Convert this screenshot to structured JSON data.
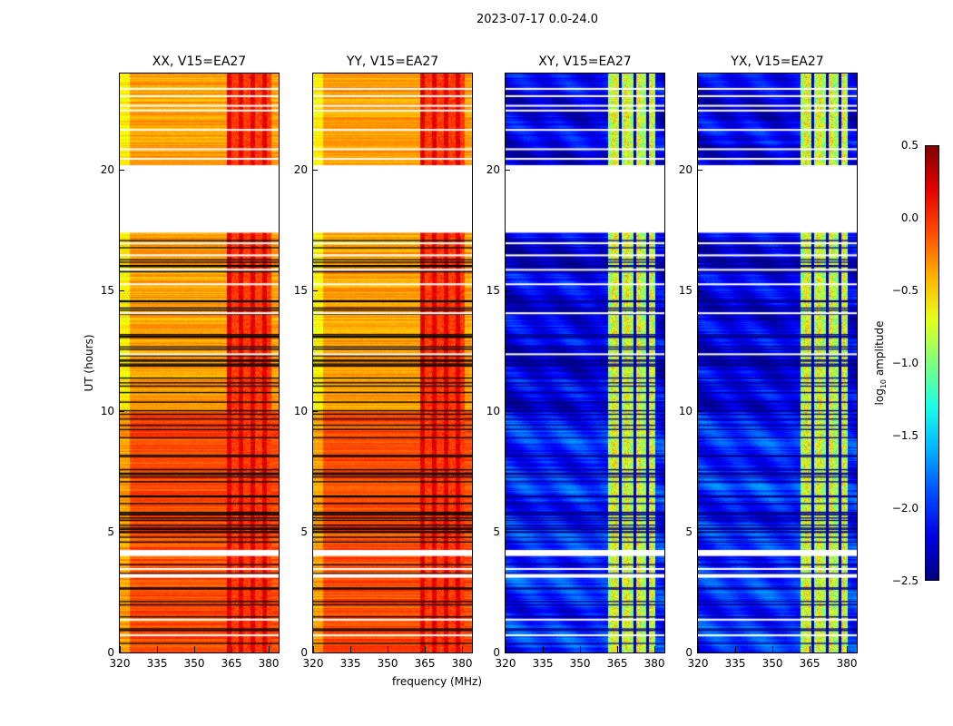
{
  "suptitle": "2023-07-17 0.0-24.0",
  "chart_data": {
    "type": "heatmap",
    "xlabel": "frequency (MHz)",
    "ylabel": "UT (hours)",
    "xlim": [
      320,
      384
    ],
    "ylim": [
      0,
      24
    ],
    "xticks": [
      "320",
      "335",
      "350",
      "365",
      "380"
    ],
    "yticks": [
      "0",
      "5",
      "10",
      "15",
      "20"
    ],
    "colorbar": {
      "label": "log10 amplitude",
      "label_main": "log",
      "label_sub": "10",
      "label_rest": " amplitude",
      "range": [
        -2.5,
        0.5
      ],
      "ticks": [
        "0.5",
        "0.0",
        "−0.5",
        "−1.0",
        "−1.5",
        "−2.0",
        "−2.5"
      ],
      "colormap": "jet"
    },
    "blank_hours": [
      [
        17.4,
        20.2
      ],
      [
        4.0,
        4.25
      ],
      [
        3.1,
        3.25
      ]
    ],
    "panels": [
      {
        "title": "XX, V15=EA27",
        "base": -0.35,
        "early_base": -0.1,
        "band": [
          363,
          381
        ],
        "band_value": -0.05
      },
      {
        "title": "YY, V15=EA27",
        "base": -0.35,
        "early_base": -0.1,
        "band": [
          363,
          381
        ],
        "band_value": -0.05
      },
      {
        "title": "XY, V15=EA27",
        "base": -2.2,
        "early_base": -2.0,
        "band": [
          361,
          380
        ],
        "band_value": -0.9
      },
      {
        "title": "YX, V15=EA27",
        "base": -2.2,
        "early_base": -2.0,
        "band": [
          361,
          380
        ],
        "band_value": -0.9
      }
    ]
  }
}
